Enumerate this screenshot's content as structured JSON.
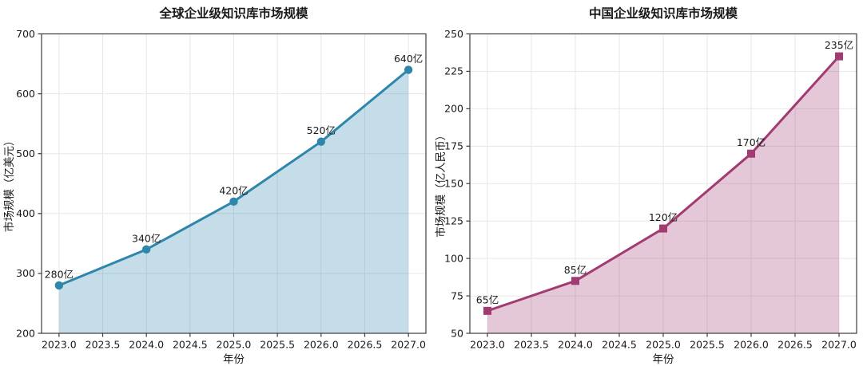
{
  "figure": {
    "background": "#ffffff",
    "text_color": "#1a1a1a",
    "grid_color": "#e7e7e7",
    "spine_color": "#3b3b3b"
  },
  "chart_data": [
    {
      "type": "line",
      "title": "全球企业级知识库市场规模",
      "xlabel": "年份",
      "ylabel": "市场规模（亿美元）",
      "x": [
        2023,
        2024,
        2025,
        2026,
        2027
      ],
      "values": [
        280,
        340,
        420,
        520,
        640
      ],
      "point_labels": [
        "280亿",
        "340亿",
        "420亿",
        "520亿",
        "640亿"
      ],
      "xlim": [
        2022.8,
        2027.2
      ],
      "ylim": [
        200,
        700
      ],
      "xticks": [
        2023.0,
        2023.5,
        2024.0,
        2024.5,
        2025.0,
        2025.5,
        2026.0,
        2026.5,
        2027.0
      ],
      "xtick_labels": [
        "2023.0",
        "2023.5",
        "2024.0",
        "2024.5",
        "2025.0",
        "2025.5",
        "2026.0",
        "2026.5",
        "2027.0"
      ],
      "yticks": [
        200,
        300,
        400,
        500,
        600,
        700
      ],
      "ytick_labels": [
        "200",
        "300",
        "400",
        "500",
        "600",
        "700"
      ],
      "line_color": "#2E86AB",
      "fill_color": "rgba(46,134,171,0.28)",
      "marker": "circle",
      "grid": true,
      "legend": null
    },
    {
      "type": "line",
      "title": "中国企业级知识库市场规模",
      "xlabel": "年份",
      "ylabel": "市场规模（亿人民币）",
      "x": [
        2023,
        2024,
        2025,
        2026,
        2027
      ],
      "values": [
        65,
        85,
        120,
        170,
        235
      ],
      "point_labels": [
        "65亿",
        "85亿",
        "120亿",
        "170亿",
        "235亿"
      ],
      "xlim": [
        2022.8,
        2027.2
      ],
      "ylim": [
        50,
        250
      ],
      "xticks": [
        2023.0,
        2023.5,
        2024.0,
        2024.5,
        2025.0,
        2025.5,
        2026.0,
        2026.5,
        2027.0
      ],
      "xtick_labels": [
        "2023.0",
        "2023.5",
        "2024.0",
        "2024.5",
        "2025.0",
        "2025.5",
        "2026.0",
        "2026.5",
        "2027.0"
      ],
      "yticks": [
        50,
        75,
        100,
        125,
        150,
        175,
        200,
        225,
        250
      ],
      "ytick_labels": [
        "50",
        "75",
        "100",
        "125",
        "150",
        "175",
        "200",
        "225",
        "250"
      ],
      "line_color": "#A23B72",
      "fill_color": "rgba(162,59,114,0.28)",
      "marker": "square",
      "grid": true,
      "legend": null
    }
  ]
}
